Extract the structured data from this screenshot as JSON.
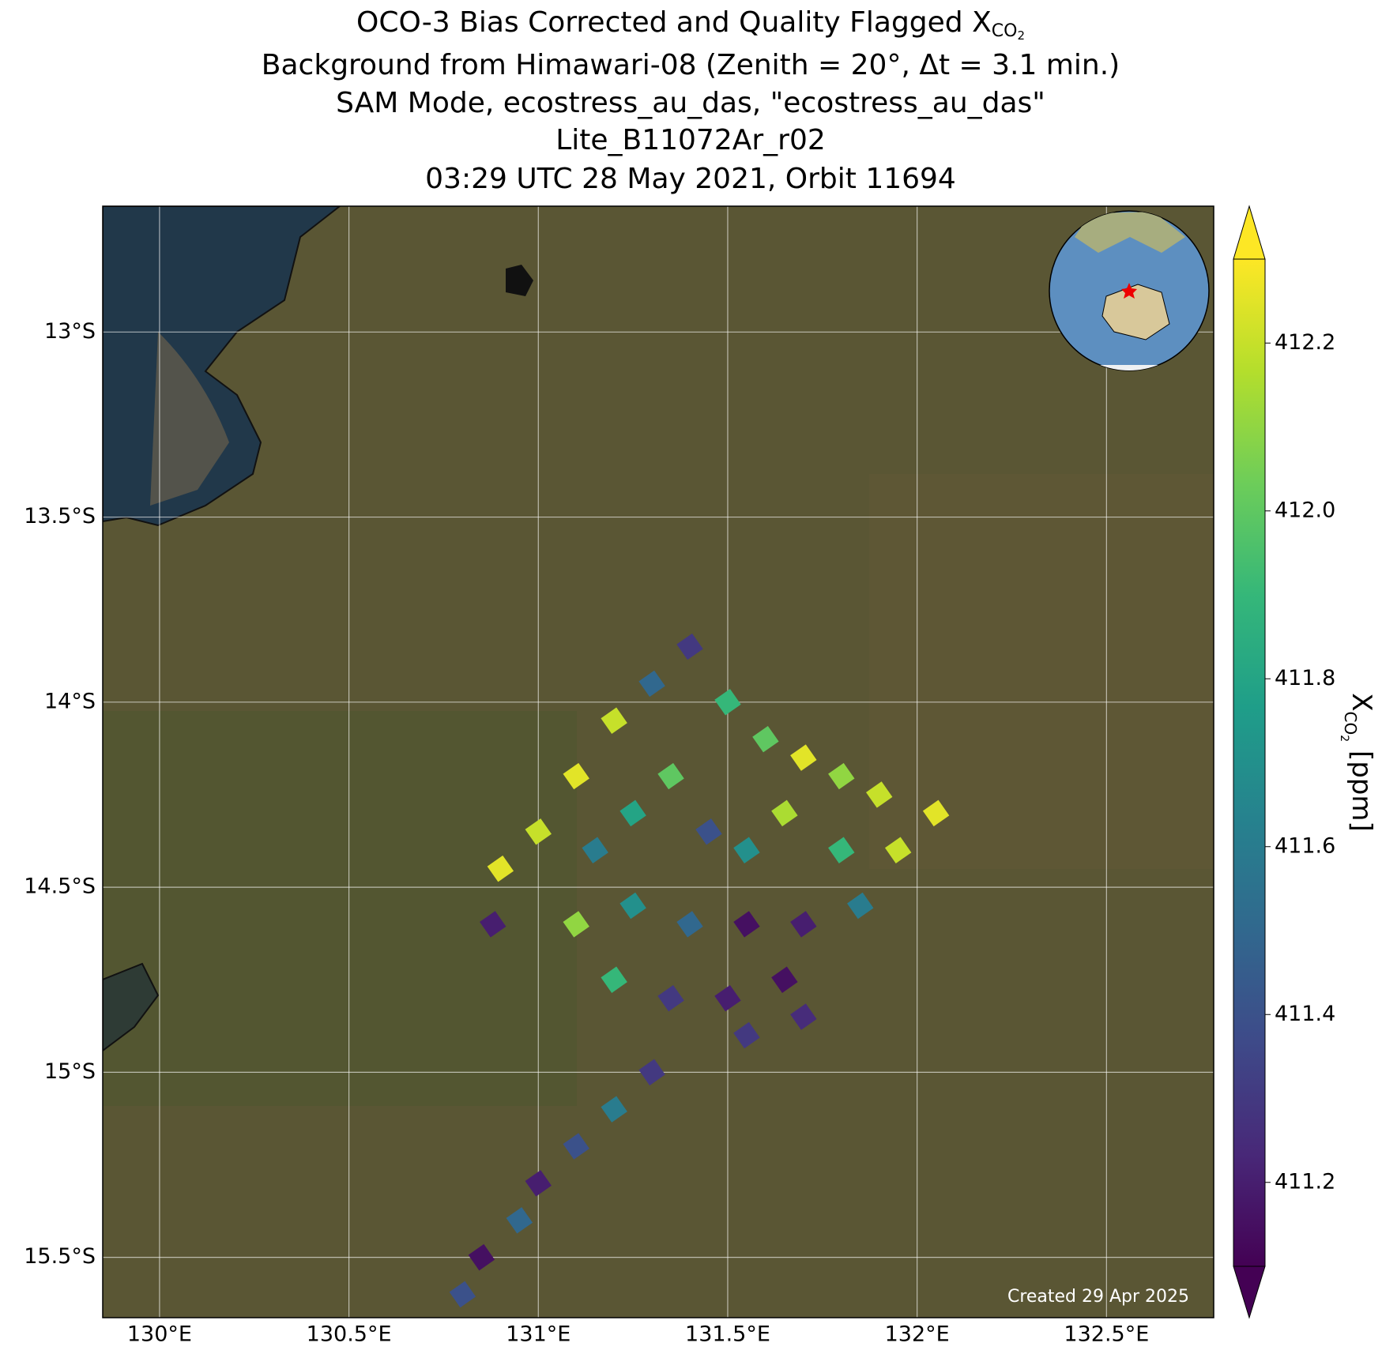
{
  "chart_data": {
    "type": "scatter",
    "title_lines": [
      {
        "main": "OCO-3 Bias Corrected and Quality Flagged X",
        "sub": "CO",
        "subsub": "2"
      },
      "Background from Himawari-08 (Zenith = 20°, Δt =  3.1 min.)",
      "SAM Mode, ecostress_au_das, \"ecostress_au_das\"",
      "Lite_B11072Ar_r02",
      "03:29 UTC 28 May 2021, Orbit 11694"
    ],
    "xlim": [
      129.85,
      132.783
    ],
    "ylim": [
      -15.663,
      -12.66
    ],
    "xticks": [
      {
        "value": 130,
        "label": "130°E"
      },
      {
        "value": 130.5,
        "label": "130.5°E"
      },
      {
        "value": 131,
        "label": "131°E"
      },
      {
        "value": 131.5,
        "label": "131.5°E"
      },
      {
        "value": 132,
        "label": "132°E"
      },
      {
        "value": 132.5,
        "label": "132.5°E"
      }
    ],
    "yticks": [
      {
        "value": -13,
        "label": "13°S"
      },
      {
        "value": -13.5,
        "label": "13.5°S"
      },
      {
        "value": -14,
        "label": "14°S"
      },
      {
        "value": -14.5,
        "label": "14.5°S"
      },
      {
        "value": -15,
        "label": "15°S"
      },
      {
        "value": -15.5,
        "label": "15.5°S"
      }
    ],
    "grid": true,
    "colormap": "viridis",
    "clim": [
      411.1,
      412.3
    ],
    "colorbar_ticks": [
      411.2,
      411.4,
      411.6,
      411.8,
      {
        "value": 412,
        "label": "412.0"
      },
      412.2
    ],
    "colorbar_label": {
      "main": "X",
      "sub": "CO",
      "subsub": "2",
      "unit": " [ppm]"
    },
    "x": [
      130.9,
      131.0,
      131.1,
      131.2,
      131.3,
      131.4,
      131.5,
      131.6,
      131.7,
      131.8,
      131.9,
      132.05,
      131.15,
      131.25,
      131.35,
      131.45,
      131.55,
      131.65,
      131.8,
      131.95,
      131.1,
      131.25,
      131.4,
      131.55,
      131.7,
      131.85,
      131.2,
      131.35,
      131.5,
      131.65,
      131.55,
      131.7,
      130.88,
      131.3,
      131.2,
      131.1,
      131.0,
      130.95,
      130.85,
      130.8
    ],
    "y": [
      -14.45,
      -14.35,
      -14.2,
      -14.05,
      -13.95,
      -13.85,
      -14.0,
      -14.1,
      -14.15,
      -14.2,
      -14.25,
      -14.3,
      -14.4,
      -14.3,
      -14.2,
      -14.35,
      -14.4,
      -14.3,
      -14.4,
      -14.4,
      -14.6,
      -14.55,
      -14.6,
      -14.6,
      -14.6,
      -14.55,
      -14.75,
      -14.8,
      -14.8,
      -14.75,
      -14.9,
      -14.85,
      -14.6,
      -15.0,
      -15.1,
      -15.2,
      -15.3,
      -15.4,
      -15.5,
      -15.6
    ],
    "values": [
      412.25,
      412.2,
      412.25,
      412.2,
      411.5,
      411.3,
      411.9,
      412.0,
      412.25,
      412.1,
      412.2,
      412.25,
      411.6,
      411.8,
      412.0,
      411.4,
      411.7,
      412.15,
      411.9,
      412.2,
      412.1,
      411.7,
      411.5,
      411.15,
      411.2,
      411.6,
      411.9,
      411.3,
      411.2,
      411.15,
      411.3,
      411.25,
      411.2,
      411.3,
      411.6,
      411.4,
      411.2,
      411.5,
      411.15,
      411.4
    ],
    "annotation": "Created 29 Apr 2025"
  }
}
